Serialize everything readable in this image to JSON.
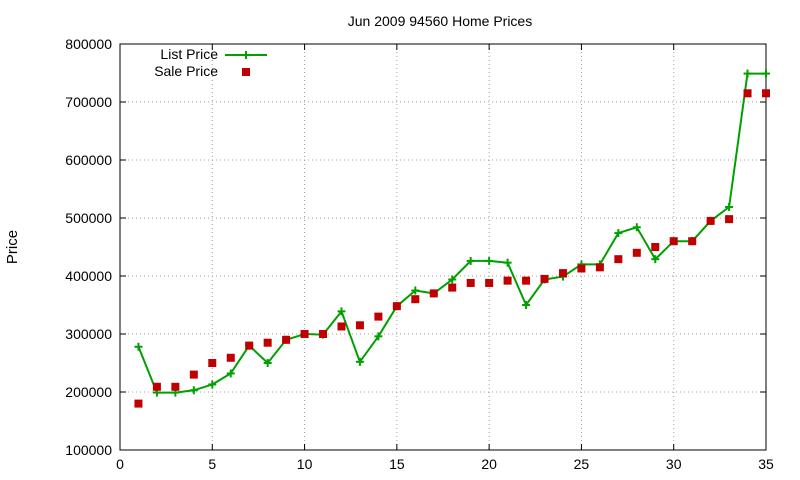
{
  "chart_data": {
    "type": "line",
    "title": "Jun 2009 94560 Home Prices",
    "xlabel": "",
    "ylabel": "Price",
    "xlim": [
      0,
      35
    ],
    "ylim": [
      100000,
      800000
    ],
    "xticks": [
      0,
      5,
      10,
      15,
      20,
      25,
      30,
      35
    ],
    "yticks": [
      100000,
      200000,
      300000,
      400000,
      500000,
      600000,
      700000,
      800000
    ],
    "grid": true,
    "legend_position": "top-left",
    "x": [
      1,
      2,
      3,
      4,
      5,
      6,
      7,
      8,
      9,
      10,
      11,
      12,
      13,
      14,
      15,
      16,
      17,
      18,
      19,
      20,
      21,
      22,
      23,
      24,
      25,
      26,
      27,
      28,
      29,
      30,
      31,
      32,
      33,
      34,
      35
    ],
    "series": [
      {
        "name": "List Price",
        "style": "line-plus",
        "color": "#00a000",
        "values": [
          278000,
          199000,
          199000,
          203000,
          213000,
          232000,
          280000,
          250000,
          290000,
          300000,
          299000,
          339000,
          252000,
          296000,
          348000,
          375000,
          370000,
          394000,
          426000,
          426000,
          423000,
          350000,
          394000,
          399000,
          420000,
          420000,
          474000,
          484000,
          429000,
          460000,
          460000,
          495000,
          519000,
          749000,
          749000
        ]
      },
      {
        "name": "Sale Price",
        "style": "square-marker",
        "color": "#c00000",
        "values": [
          180000,
          209000,
          209000,
          230000,
          250000,
          259000,
          280000,
          285000,
          290000,
          300000,
          300000,
          313000,
          315000,
          330000,
          348000,
          360000,
          370000,
          380000,
          388000,
          388000,
          392000,
          392000,
          395000,
          405000,
          413000,
          415000,
          429000,
          440000,
          450000,
          460000,
          460000,
          495000,
          498000,
          715000,
          715000
        ]
      }
    ]
  }
}
